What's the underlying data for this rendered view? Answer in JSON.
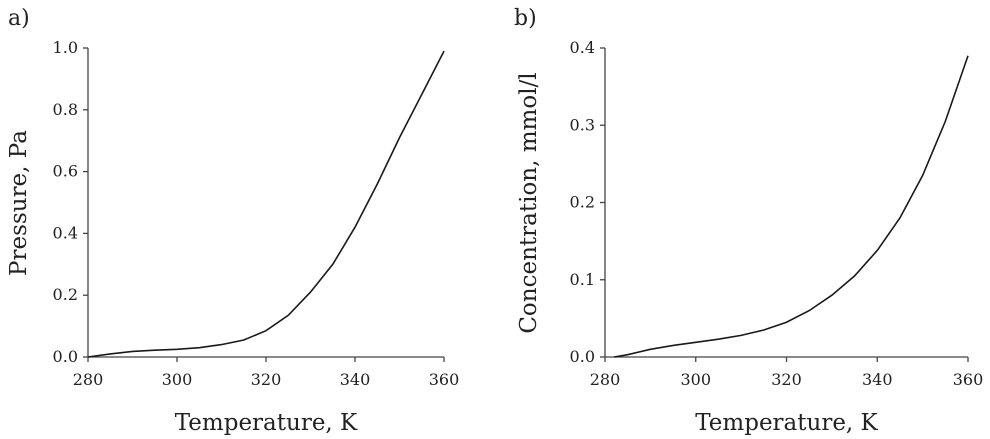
{
  "chart_data": [
    {
      "type": "line",
      "panel_label": "a)",
      "xlabel": "Temperature, K",
      "ylabel": "Pressure, Pa",
      "xlim": [
        280,
        360
      ],
      "ylim": [
        0,
        1.0
      ],
      "xticks": [
        "280",
        "300",
        "320",
        "340",
        "360"
      ],
      "yticks": [
        "0.0",
        "0.2",
        "0.4",
        "0.6",
        "0.8",
        "1.0"
      ],
      "grid": false,
      "legend": "none",
      "series": [
        {
          "x": [
            280,
            285,
            290,
            295,
            300,
            305,
            310,
            315,
            320,
            325,
            330,
            335,
            340,
            345,
            350,
            355,
            360
          ],
          "y": [
            0.0,
            0.01,
            0.018,
            0.022,
            0.025,
            0.03,
            0.04,
            0.055,
            0.085,
            0.135,
            0.21,
            0.3,
            0.42,
            0.56,
            0.71,
            0.85,
            0.99
          ]
        }
      ]
    },
    {
      "type": "line",
      "panel_label": "b)",
      "xlabel": "Temperature, K",
      "ylabel": "Concentration, mmol/l",
      "xlim": [
        280,
        360
      ],
      "ylim": [
        0,
        0.4
      ],
      "xticks": [
        "280",
        "300",
        "320",
        "340",
        "360"
      ],
      "yticks": [
        "0.0",
        "0.1",
        "0.2",
        "0.3",
        "0.4"
      ],
      "grid": false,
      "legend": "none",
      "series": [
        {
          "x": [
            282,
            285,
            290,
            295,
            300,
            305,
            310,
            315,
            320,
            325,
            330,
            335,
            340,
            345,
            350,
            355,
            360
          ],
          "y": [
            0.0,
            0.003,
            0.01,
            0.015,
            0.019,
            0.023,
            0.028,
            0.035,
            0.045,
            0.06,
            0.08,
            0.105,
            0.138,
            0.18,
            0.235,
            0.305,
            0.39
          ]
        }
      ]
    }
  ]
}
